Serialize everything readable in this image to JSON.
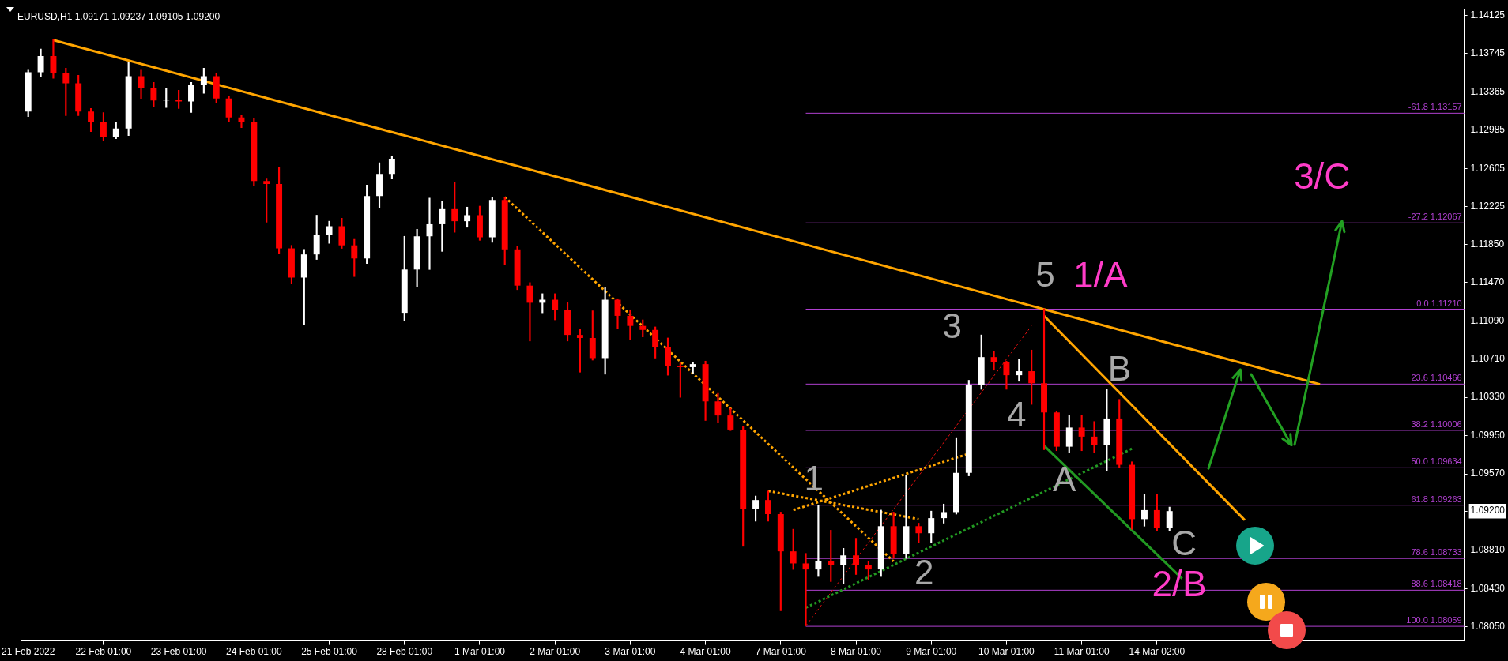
{
  "chart_data": {
    "type": "candlestick",
    "title": "EURUSD,H1 1.09171 1.09237 1.09105 1.09200",
    "categories": [
      "21 Feb 2022",
      null,
      null,
      null,
      null,
      null,
      "22 Feb 01:00",
      null,
      null,
      null,
      null,
      null,
      "23 Feb 01:00",
      null,
      null,
      null,
      null,
      null,
      "24 Feb 01:00",
      null,
      null,
      null,
      null,
      null,
      "25 Feb 01:00",
      null,
      null,
      null,
      null,
      null,
      "28 Feb 01:00",
      null,
      null,
      null,
      null,
      null,
      "1 Mar 01:00",
      null,
      null,
      null,
      null,
      null,
      "2 Mar 01:00",
      null,
      null,
      null,
      null,
      null,
      "3 Mar 01:00",
      null,
      null,
      null,
      null,
      null,
      "4 Mar 01:00",
      null,
      null,
      null,
      null,
      null,
      "7 Mar 01:00",
      null,
      null,
      null,
      null,
      null,
      "8 Mar 01:00",
      null,
      null,
      null,
      null,
      null,
      "9 Mar 01:00",
      null,
      null,
      null,
      null,
      null,
      "10 Mar 01:00",
      null,
      null,
      null,
      null,
      null,
      "11 Mar 01:00",
      null,
      null,
      null,
      null,
      null,
      "14 Mar 02:00",
      null,
      null,
      null,
      null,
      null,
      null,
      null,
      null,
      null,
      null,
      null,
      null,
      null,
      null,
      null,
      null,
      null,
      null,
      null,
      null,
      null,
      null,
      null,
      null
    ],
    "ohlc": [
      [
        1.1317,
        1.1358,
        1.1312,
        1.1356
      ],
      [
        1.1356,
        1.1379,
        1.1352,
        1.1372
      ],
      [
        1.1372,
        1.1389,
        1.135,
        1.1355
      ],
      [
        1.1355,
        1.136,
        1.1313,
        1.1345
      ],
      [
        1.1345,
        1.1353,
        1.1313,
        1.1317
      ],
      [
        1.1317,
        1.132,
        1.1297,
        1.1307
      ],
      [
        1.1307,
        1.1316,
        1.1288,
        1.1292
      ],
      [
        1.1292,
        1.1306,
        1.129,
        1.13
      ],
      [
        1.13,
        1.1366,
        1.1293,
        1.1352
      ],
      [
        1.1352,
        1.1358,
        1.133,
        1.134
      ],
      [
        1.134,
        1.1346,
        1.1322,
        1.1328
      ],
      [
        1.1328,
        1.134,
        1.1321,
        1.1329
      ],
      [
        1.1329,
        1.1338,
        1.132,
        1.1327
      ],
      [
        1.1327,
        1.1346,
        1.1316,
        1.1343
      ],
      [
        1.1343,
        1.136,
        1.1335,
        1.1352
      ],
      [
        1.1352,
        1.1355,
        1.1326,
        1.133
      ],
      [
        1.133,
        1.1332,
        1.1307,
        1.1311
      ],
      [
        1.1311,
        1.1313,
        1.1301,
        1.1307
      ],
      [
        1.1307,
        1.131,
        1.1243,
        1.1248
      ],
      [
        1.1248,
        1.125,
        1.1207,
        1.1245
      ],
      [
        1.1245,
        1.1262,
        1.1176,
        1.1181
      ],
      [
        1.1181,
        1.1184,
        1.1146,
        1.1152
      ],
      [
        1.1152,
        1.118,
        1.1105,
        1.1175
      ],
      [
        1.1175,
        1.1214,
        1.117,
        1.1194
      ],
      [
        1.1194,
        1.1208,
        1.1186,
        1.1203
      ],
      [
        1.1203,
        1.1211,
        1.1181,
        1.1184
      ],
      [
        1.1184,
        1.119,
        1.1153,
        1.1171
      ],
      [
        1.1171,
        1.1244,
        1.1166,
        1.1233
      ],
      [
        1.1233,
        1.1266,
        1.1221,
        1.1255
      ],
      [
        1.1255,
        1.1273,
        1.125,
        1.127
      ],
      [
        1.1117,
        1.1193,
        1.1109,
        1.116
      ],
      [
        1.116,
        1.12,
        1.1143,
        1.1193
      ],
      [
        1.1193,
        1.1231,
        1.116,
        1.1205
      ],
      [
        1.1205,
        1.1228,
        1.1178,
        1.122
      ],
      [
        1.122,
        1.1247,
        1.1197,
        1.1208
      ],
      [
        1.1208,
        1.1222,
        1.1202,
        1.1214
      ],
      [
        1.1214,
        1.1223,
        1.1189,
        1.1192
      ],
      [
        1.1192,
        1.1232,
        1.1187,
        1.1229
      ],
      [
        1.1229,
        1.1232,
        1.1165,
        1.118
      ],
      [
        1.118,
        1.1183,
        1.114,
        1.1144
      ],
      [
        1.1144,
        1.1147,
        1.1089,
        1.1127
      ],
      [
        1.1127,
        1.1136,
        1.1117,
        1.113
      ],
      [
        1.113,
        1.1136,
        1.111,
        1.112
      ],
      [
        1.112,
        1.1127,
        1.1089,
        1.1095
      ],
      [
        1.1095,
        1.1101,
        1.1058,
        1.1092
      ],
      [
        1.1092,
        1.1119,
        1.107,
        1.1072
      ],
      [
        1.1072,
        1.1142,
        1.1056,
        1.113
      ],
      [
        1.113,
        1.1131,
        1.1101,
        1.1114
      ],
      [
        1.1114,
        1.112,
        1.109,
        1.1104
      ],
      [
        1.1104,
        1.111,
        1.1093,
        1.11
      ],
      [
        1.11,
        1.1103,
        1.1072,
        1.1083
      ],
      [
        1.1083,
        1.1092,
        1.1055,
        1.1064
      ],
      [
        1.1064,
        1.1067,
        1.1033,
        1.1063
      ],
      [
        1.1063,
        1.1068,
        1.1057,
        1.1066
      ],
      [
        1.1066,
        1.1069,
        1.101,
        1.1029
      ],
      [
        1.1029,
        1.1037,
        1.1008,
        1.1015
      ],
      [
        1.1015,
        1.1022,
        1.1,
        1.1001
      ],
      [
        1.1001,
        1.1004,
        1.0885,
        1.0922
      ],
      [
        1.0922,
        1.0935,
        1.091,
        1.0931
      ],
      [
        1.0931,
        1.094,
        1.091,
        1.0917
      ],
      [
        1.0917,
        1.0919,
        1.0821,
        1.088
      ],
      [
        1.088,
        1.0902,
        1.0862,
        1.0868
      ],
      [
        1.0868,
        1.0878,
        1.0806,
        1.0862
      ],
      [
        1.0862,
        1.0926,
        1.0855,
        1.087
      ],
      [
        1.087,
        1.0901,
        1.085,
        1.0866
      ],
      [
        1.0866,
        1.0883,
        1.0848,
        1.0876
      ],
      [
        1.0876,
        1.0893,
        1.0857,
        1.0866
      ],
      [
        1.0866,
        1.087,
        1.0852,
        1.0862
      ],
      [
        1.0862,
        1.0921,
        1.0855,
        1.0905
      ],
      [
        1.0905,
        1.0919,
        1.0873,
        1.0877
      ],
      [
        1.0877,
        1.0956,
        1.0873,
        1.0905
      ],
      [
        1.0905,
        1.0908,
        1.0889,
        1.0898
      ],
      [
        1.0898,
        1.092,
        1.0889,
        1.0913
      ],
      [
        1.0913,
        1.0927,
        1.0908,
        1.0919
      ],
      [
        1.0919,
        1.0993,
        1.0917,
        1.0958
      ],
      [
        1.0958,
        1.105,
        1.0955,
        1.1045
      ],
      [
        1.1045,
        1.1095,
        1.1041,
        1.1073
      ],
      [
        1.1073,
        1.1079,
        1.106,
        1.1068
      ],
      [
        1.1068,
        1.1069,
        1.1041,
        1.1055
      ],
      [
        1.1055,
        1.1071,
        1.1049,
        1.1059
      ],
      [
        1.1059,
        1.108,
        1.1026,
        1.1047
      ],
      [
        1.1047,
        1.1121,
        1.0981,
        1.1018
      ],
      [
        1.1018,
        1.1019,
        1.098,
        1.0984
      ],
      [
        1.0984,
        1.1015,
        1.0978,
        1.1003
      ],
      [
        1.1003,
        1.1015,
        1.098,
        1.0994
      ],
      [
        1.0994,
        1.1009,
        1.0978,
        1.0986
      ],
      [
        1.0986,
        1.1041,
        1.096,
        1.1012
      ],
      [
        1.1012,
        1.1031,
        1.0963,
        1.0966
      ],
      [
        1.0966,
        1.0969,
        1.0902,
        1.0912
      ],
      [
        1.0912,
        1.0937,
        1.0905,
        1.0921
      ],
      [
        1.0921,
        1.0937,
        1.09,
        1.0903
      ],
      [
        1.0903,
        1.0924,
        1.09,
        1.092
      ],
      null,
      null,
      null,
      null,
      null,
      null,
      null,
      null,
      null,
      null,
      null,
      null,
      null,
      null,
      null,
      null,
      null,
      null,
      null,
      null,
      null,
      null,
      null
    ],
    "colors": [
      "#ffffff",
      "#ffffff",
      "#ff0000",
      "#ff0000",
      "#ff0000",
      "#ff0000",
      "#ff0000",
      "#ffffff",
      "#ffffff",
      "#ff0000",
      "#ff0000",
      "#ffffff",
      "#ff0000",
      "#ffffff",
      "#ffffff",
      "#ff0000",
      "#ff0000",
      "#ff0000",
      "#ff0000",
      "#ff0000",
      "#ff0000",
      "#ff0000",
      "#ffffff",
      "#ffffff",
      "#ffffff",
      "#ff0000",
      "#ff0000",
      "#ffffff",
      "#ffffff",
      "#ffffff",
      "#ffffff",
      "#ffffff",
      "#ffffff",
      "#ffffff",
      "#ff0000",
      "#ffffff",
      "#ff0000",
      "#ffffff",
      "#ff0000",
      "#ff0000",
      "#ff0000",
      "#ffffff",
      "#ff0000",
      "#ff0000",
      "#ff0000",
      "#ff0000",
      "#ffffff",
      "#ff0000",
      "#ff0000",
      "#ff0000",
      "#ff0000",
      "#ff0000",
      "#ff0000",
      "#ffffff",
      "#ff0000",
      "#ff0000",
      "#ff0000",
      "#ff0000",
      "#ffffff",
      "#ff0000",
      "#ff0000",
      "#ff0000",
      "#ff0000",
      "#ffffff",
      "#ff0000",
      "#ffffff",
      "#ff0000",
      "#ff0000",
      "#ffffff",
      "#ff0000",
      "#ffffff",
      "#ff0000",
      "#ffffff",
      "#ffffff",
      "#ffffff",
      "#ffffff",
      "#ffffff",
      "#ff0000",
      "#ff0000",
      "#ffffff",
      "#ff0000",
      "#ff0000",
      "#ff0000",
      "#ffffff",
      "#ff0000",
      "#ff0000",
      "#ffffff",
      "#ff0000",
      "#ff0000",
      "#ffffff",
      "#ff0000",
      "#ffffff",
      null,
      null,
      null,
      null,
      null,
      null,
      null,
      null,
      null,
      null,
      null,
      null,
      null,
      null,
      null,
      null,
      null,
      null,
      null,
      null,
      null,
      null,
      null
    ],
    "series": [
      {
        "type": "line",
        "color": "#ffa500",
        "line_style": "solid",
        "values": [
          null,
          null,
          1.1388,
          null,
          null,
          null,
          null,
          null,
          null,
          null,
          null,
          null,
          null,
          null,
          null,
          null,
          null,
          null,
          null,
          null,
          null,
          null,
          null,
          null,
          null,
          null,
          null,
          null,
          null,
          null,
          null,
          null,
          null,
          null,
          null,
          null,
          null,
          null,
          null,
          null,
          null,
          null,
          null,
          null,
          null,
          null,
          null,
          null,
          null,
          null,
          null,
          null,
          null,
          null,
          null,
          null,
          null,
          null,
          null,
          null,
          null,
          null,
          null,
          null,
          null,
          null,
          null,
          null,
          null,
          null,
          null,
          null,
          null,
          null,
          null,
          null,
          null,
          null,
          null,
          null,
          null,
          null,
          null,
          null,
          null,
          null,
          null,
          null,
          null,
          null,
          null,
          null,
          null,
          null,
          null,
          null,
          null,
          null,
          null,
          null,
          null,
          null,
          null,
          1.1046,
          null,
          null,
          null,
          null,
          null,
          null,
          null,
          null,
          null,
          null,
          null
        ]
      },
      {
        "type": "line",
        "color": "#ffa500",
        "line_style": "solid",
        "values": [
          null,
          null,
          null,
          null,
          null,
          null,
          null,
          null,
          null,
          null,
          null,
          null,
          null,
          null,
          null,
          null,
          null,
          null,
          null,
          null,
          null,
          null,
          null,
          null,
          null,
          null,
          null,
          null,
          null,
          null,
          null,
          null,
          null,
          null,
          null,
          null,
          null,
          null,
          null,
          null,
          null,
          null,
          null,
          null,
          null,
          null,
          null,
          null,
          null,
          null,
          null,
          null,
          null,
          null,
          null,
          null,
          null,
          null,
          null,
          null,
          null,
          null,
          null,
          null,
          null,
          null,
          null,
          null,
          null,
          null,
          null,
          null,
          null,
          null,
          null,
          null,
          null,
          null,
          null,
          null,
          null,
          1.1114,
          null,
          null,
          null,
          null,
          null,
          null,
          null,
          null,
          null,
          null,
          null,
          null,
          null,
          null,
          null,
          1.0911,
          null,
          null,
          null,
          null,
          null,
          null,
          null,
          null,
          null,
          null,
          null,
          null,
          null,
          null,
          null,
          null,
          null
        ]
      },
      {
        "type": "line",
        "color": "#ffa500",
        "line_style": "dotted",
        "values": [
          null,
          null,
          null,
          null,
          null,
          null,
          null,
          null,
          null,
          null,
          null,
          null,
          null,
          null,
          null,
          null,
          null,
          null,
          null,
          null,
          null,
          null,
          null,
          null,
          null,
          null,
          null,
          null,
          null,
          null,
          null,
          null,
          null,
          null,
          null,
          null,
          null,
          null,
          1.1232,
          null,
          null,
          null,
          null,
          null,
          null,
          null,
          null,
          null,
          null,
          null,
          null,
          null,
          null,
          null,
          null,
          null,
          null,
          null,
          null,
          null,
          null,
          null,
          null,
          null,
          null,
          null,
          null,
          null,
          null,
          1.087,
          null,
          null,
          null,
          null,
          null,
          null,
          null,
          null,
          null,
          null,
          null,
          null,
          null,
          null,
          null,
          null,
          null,
          null,
          null,
          null,
          null,
          null,
          null,
          null,
          null,
          null,
          null,
          null,
          null,
          null,
          null,
          null,
          null,
          null,
          null,
          null,
          null,
          null,
          null,
          null,
          null,
          null,
          null,
          null,
          null
        ]
      },
      {
        "type": "line",
        "color": "#ffa500",
        "line_style": "dotted",
        "values": [
          null,
          null,
          null,
          null,
          null,
          null,
          null,
          null,
          null,
          null,
          null,
          null,
          null,
          null,
          null,
          null,
          null,
          null,
          null,
          null,
          null,
          null,
          null,
          null,
          null,
          null,
          null,
          null,
          null,
          null,
          null,
          null,
          null,
          null,
          null,
          null,
          null,
          null,
          null,
          null,
          null,
          null,
          null,
          null,
          null,
          null,
          null,
          null,
          null,
          null,
          null,
          null,
          null,
          null,
          null,
          null,
          null,
          null,
          null,
          1.094,
          null,
          null,
          null,
          null,
          null,
          null,
          null,
          null,
          null,
          null,
          null,
          1.0912,
          null,
          null,
          null,
          null,
          null,
          null,
          null,
          null,
          null,
          null,
          null,
          null,
          null,
          null,
          null,
          null,
          null,
          null,
          null,
          null,
          null,
          null,
          null,
          null,
          null,
          null,
          null,
          null,
          null,
          null,
          null,
          null,
          null,
          null,
          null,
          null,
          null,
          null,
          null,
          null,
          null,
          null,
          null
        ]
      },
      {
        "type": "line",
        "color": "#ffa500",
        "line_style": "dotted",
        "values": [
          null,
          null,
          null,
          null,
          null,
          null,
          null,
          null,
          null,
          null,
          null,
          null,
          null,
          null,
          null,
          null,
          null,
          null,
          null,
          null,
          null,
          null,
          null,
          null,
          null,
          null,
          null,
          null,
          null,
          null,
          null,
          null,
          null,
          null,
          null,
          null,
          null,
          null,
          null,
          null,
          null,
          null,
          null,
          null,
          null,
          null,
          null,
          null,
          null,
          null,
          null,
          null,
          null,
          null,
          null,
          null,
          null,
          null,
          null,
          null,
          null,
          1.0921,
          null,
          null,
          null,
          null,
          null,
          null,
          null,
          null,
          null,
          null,
          null,
          null,
          null,
          1.0977,
          null,
          null,
          null,
          null,
          null,
          null,
          null,
          null,
          null,
          null,
          null,
          null,
          null,
          null,
          null,
          null,
          null,
          null,
          null,
          null,
          null,
          null,
          null,
          null,
          null,
          null,
          null,
          null,
          null,
          null,
          null,
          null,
          null,
          null,
          null,
          null,
          null,
          null,
          null
        ]
      },
      {
        "type": "line",
        "color": "#229922",
        "line_style": "dotted",
        "values": [
          null,
          null,
          null,
          null,
          null,
          null,
          null,
          null,
          null,
          null,
          null,
          null,
          null,
          null,
          null,
          null,
          null,
          null,
          null,
          null,
          null,
          null,
          null,
          null,
          null,
          null,
          null,
          null,
          null,
          null,
          null,
          null,
          null,
          null,
          null,
          null,
          null,
          null,
          null,
          null,
          null,
          null,
          null,
          null,
          null,
          null,
          null,
          null,
          null,
          null,
          null,
          null,
          null,
          null,
          null,
          null,
          null,
          null,
          null,
          null,
          null,
          null,
          1.0824,
          null,
          null,
          null,
          null,
          null,
          null,
          null,
          null,
          null,
          null,
          null,
          null,
          null,
          null,
          null,
          null,
          null,
          null,
          null,
          null,
          null,
          null,
          null,
          null,
          null,
          1.0982,
          null,
          null,
          null,
          null,
          null,
          null,
          null,
          null,
          null,
          null,
          null,
          null,
          null,
          null,
          null,
          null,
          null,
          null,
          null,
          null,
          null,
          null,
          null,
          null,
          null,
          null
        ]
      },
      {
        "type": "line",
        "color": "#e81010",
        "line_style": "dashed",
        "values": [
          null,
          null,
          null,
          null,
          null,
          null,
          null,
          null,
          null,
          null,
          null,
          null,
          null,
          null,
          null,
          null,
          null,
          null,
          null,
          null,
          null,
          null,
          null,
          null,
          null,
          null,
          null,
          null,
          null,
          null,
          null,
          null,
          null,
          null,
          null,
          null,
          null,
          null,
          null,
          null,
          null,
          null,
          null,
          null,
          null,
          null,
          null,
          null,
          null,
          null,
          null,
          null,
          null,
          null,
          null,
          null,
          null,
          null,
          null,
          null,
          null,
          null,
          1.0806,
          null,
          null,
          null,
          null,
          null,
          null,
          null,
          null,
          null,
          null,
          null,
          null,
          null,
          null,
          null,
          null,
          null,
          1.1104,
          null,
          null,
          null,
          null,
          null,
          null,
          null,
          null,
          null,
          null,
          null,
          null,
          null,
          null,
          null,
          null,
          null,
          null,
          null,
          null,
          null,
          null,
          null,
          null,
          null,
          null,
          null,
          null,
          null,
          null,
          null,
          null,
          null,
          null
        ]
      },
      {
        "type": "line",
        "color": "#229922",
        "line_style": "solid",
        "values": [
          null,
          null,
          null,
          null,
          null,
          null,
          null,
          null,
          null,
          null,
          null,
          null,
          null,
          null,
          null,
          null,
          null,
          null,
          null,
          null,
          null,
          null,
          null,
          null,
          null,
          null,
          null,
          null,
          null,
          null,
          null,
          null,
          null,
          null,
          null,
          null,
          null,
          null,
          null,
          null,
          null,
          null,
          null,
          null,
          null,
          null,
          null,
          null,
          null,
          null,
          null,
          null,
          null,
          null,
          null,
          null,
          null,
          null,
          null,
          null,
          null,
          null,
          null,
          null,
          null,
          null,
          null,
          null,
          null,
          null,
          null,
          null,
          null,
          null,
          null,
          null,
          null,
          null,
          null,
          null,
          null,
          1.0985,
          null,
          null,
          null,
          null,
          null,
          null,
          null,
          null,
          null,
          null,
          1.0853,
          null,
          null,
          null,
          null,
          null,
          null,
          null,
          null,
          null,
          null,
          null,
          null,
          null,
          null,
          null,
          null,
          null,
          null,
          null,
          null,
          null,
          null
        ]
      }
    ],
    "ylim": [
      1.0791,
      1.1419
    ],
    "yticks": [
      1.14125,
      1.13745,
      1.13365,
      1.12985,
      1.12605,
      1.12225,
      {
        "value": 1.1185,
        "label": "1.11850"
      },
      {
        "value": 1.1147,
        "label": "1.11470"
      },
      {
        "value": 1.1109,
        "label": "1.11090"
      },
      {
        "value": 1.1071,
        "label": "1.10710"
      },
      {
        "value": 1.1033,
        "label": "1.10330"
      },
      {
        "value": 1.0995,
        "label": "1.09950"
      },
      {
        "value": 1.0957,
        "label": "1.09570"
      },
      {
        "value": 1.092,
        "label": "1.09200"
      },
      {
        "value": 1.0881,
        "label": "1.08810"
      },
      {
        "value": 1.0843,
        "label": "1.08430"
      },
      {
        "value": 1.0805,
        "label": "1.08050"
      }
    ],
    "ref_lines": [
      {
        "axis": "y",
        "value": 1.13157,
        "label": "-61.8 1.13157",
        "color": "#b040d0"
      },
      {
        "axis": "y",
        "value": 1.12067,
        "label": "-27.2 1.12067",
        "color": "#b040d0"
      },
      {
        "axis": "y",
        "value": 1.1121,
        "label": "0.0 1.11210",
        "color": "#b040d0"
      },
      {
        "axis": "y",
        "value": 1.10466,
        "label": "23.6 1.10466",
        "color": "#b040d0"
      },
      {
        "axis": "y",
        "value": 1.10006,
        "label": "38.2 1.10006",
        "color": "#b040d0"
      },
      {
        "axis": "y",
        "value": 1.09634,
        "label": "50.0 1.09634",
        "color": "#b040d0"
      },
      {
        "axis": "y",
        "value": 1.09263,
        "label": "61.8 1.09263",
        "color": "#b040d0"
      },
      {
        "axis": "y",
        "value": 1.08733,
        "label": "78.6 1.08733",
        "color": "#b040d0"
      },
      {
        "axis": "y",
        "value": 1.08418,
        "label": "88.6 1.08418",
        "color": "#b040d0"
      },
      {
        "axis": "y",
        "value": 1.08059,
        "label": "100.0 1.08059",
        "color": "#b040d0"
      }
    ],
    "annotations": [
      "1",
      "2",
      "3",
      "4",
      "5",
      "A",
      "B",
      "C",
      "1/A",
      "2/B",
      "3/C"
    ]
  }
}
